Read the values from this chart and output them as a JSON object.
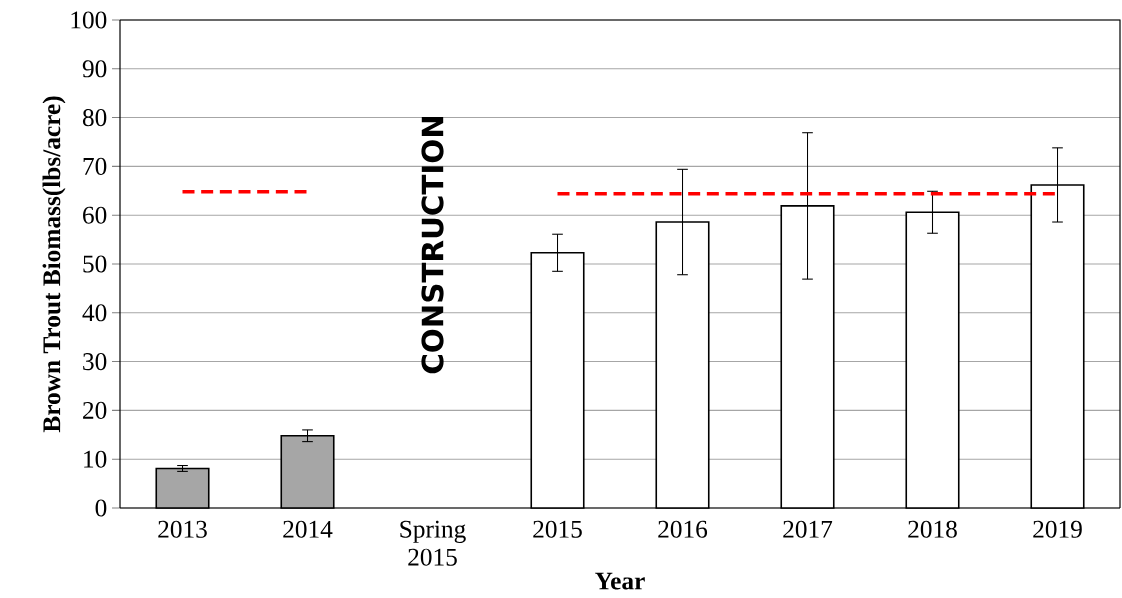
{
  "chart_data": {
    "type": "bar",
    "xlabel": "Year",
    "ylabel": "Brown Trout Biomass(lbs/acre)",
    "categories": [
      "2013",
      "2014",
      "Spring 2015",
      "2015",
      "2016",
      "2017",
      "2018",
      "2019"
    ],
    "series": [
      {
        "values": [
          8.1,
          14.8,
          null,
          52.3,
          58.6,
          61.9,
          60.6,
          66.2
        ],
        "colors": [
          "#a6a6a6",
          "#a6a6a6",
          null,
          "#ffffff",
          "#ffffff",
          "#ffffff",
          "#ffffff",
          "#ffffff"
        ],
        "errors": [
          0.6,
          1.2,
          null,
          3.8,
          10.8,
          15,
          4.3,
          7.6
        ]
      },
      {
        "type": "line",
        "color": "#ff0000",
        "line_style": "dashed",
        "marker": "none",
        "values": [
          64.8,
          64.8,
          null,
          64.4,
          64.4,
          64.4,
          64.4,
          64.4
        ]
      }
    ],
    "ylim": [
      0,
      100
    ],
    "yticks": [
      0,
      10,
      20,
      30,
      40,
      50,
      60,
      70,
      80,
      90,
      100
    ],
    "grid": "y",
    "annotations": [
      "CONSTRUCTION"
    ]
  }
}
